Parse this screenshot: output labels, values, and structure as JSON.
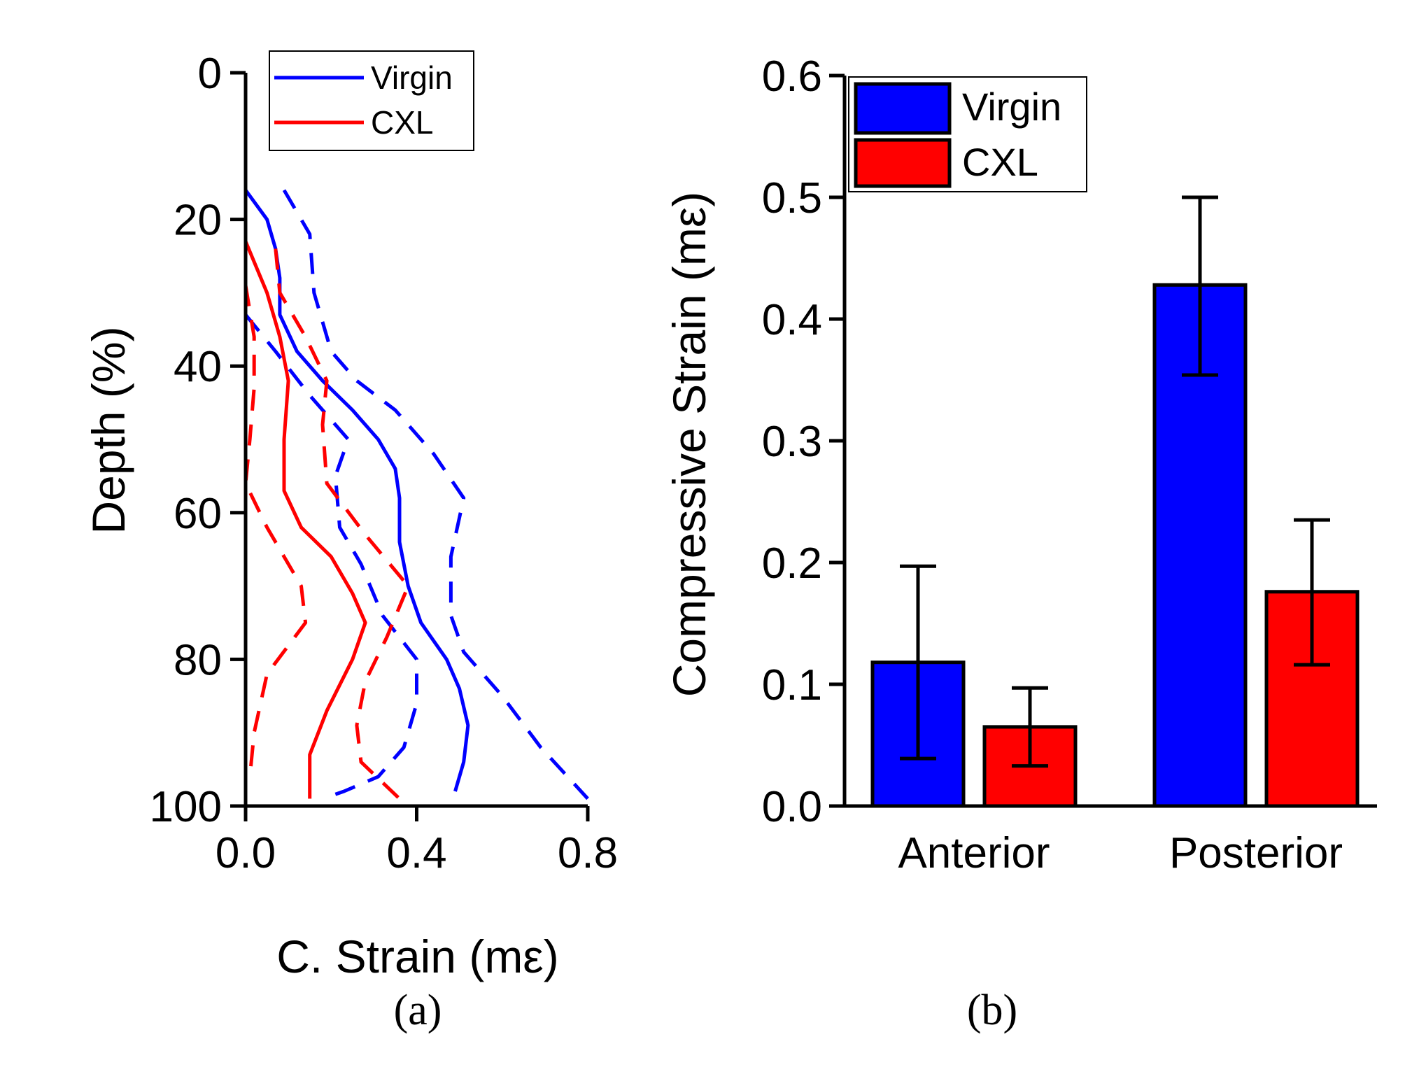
{
  "colors": {
    "virgin": "#0000ff",
    "cxl": "#ff0000",
    "axis": "#000000",
    "background": "#ffffff"
  },
  "chart_data": [
    {
      "id": "a",
      "type": "line",
      "caption": "(a)",
      "xlabel": "C. Strain (mε)",
      "ylabel": "Depth (%)",
      "xlim": [
        0.0,
        0.8
      ],
      "ylim": [
        100,
        0
      ],
      "x_ticks": [
        "0.0",
        "0.4",
        "0.8"
      ],
      "x_tick_values": [
        0.0,
        0.4,
        0.8
      ],
      "y_ticks": [
        "0",
        "20",
        "40",
        "60",
        "80",
        "100"
      ],
      "y_tick_values": [
        0,
        20,
        40,
        60,
        80,
        100
      ],
      "legend": [
        {
          "label": "Virgin",
          "color": "#0000ff"
        },
        {
          "label": "CXL",
          "color": "#ff0000"
        }
      ],
      "series": [
        {
          "name": "Virgin",
          "style": "solid",
          "color": "#0000ff",
          "points": [
            [
              0.0,
              16
            ],
            [
              0.05,
              20
            ],
            [
              0.07,
              24
            ],
            [
              0.08,
              28
            ],
            [
              0.08,
              33
            ],
            [
              0.12,
              38
            ],
            [
              0.18,
              42
            ],
            [
              0.25,
              46
            ],
            [
              0.31,
              50
            ],
            [
              0.35,
              54
            ],
            [
              0.36,
              58
            ],
            [
              0.36,
              64
            ],
            [
              0.38,
              70
            ],
            [
              0.41,
              75
            ],
            [
              0.47,
              80
            ],
            [
              0.5,
              84
            ],
            [
              0.52,
              89
            ],
            [
              0.51,
              94
            ],
            [
              0.49,
              98
            ]
          ]
        },
        {
          "name": "Virgin (+SD)",
          "style": "dashed",
          "color": "#0000ff",
          "points": [
            [
              0.09,
              16
            ],
            [
              0.15,
              22
            ],
            [
              0.16,
              30
            ],
            [
              0.2,
              38
            ],
            [
              0.26,
              42
            ],
            [
              0.35,
              46
            ],
            [
              0.44,
              52
            ],
            [
              0.51,
              58
            ],
            [
              0.48,
              66
            ],
            [
              0.48,
              74
            ],
            [
              0.51,
              79
            ],
            [
              0.6,
              85
            ],
            [
              0.69,
              92
            ],
            [
              0.8,
              99
            ]
          ]
        },
        {
          "name": "Virgin (−SD)",
          "style": "dashed",
          "color": "#0000ff",
          "points": [
            [
              0.0,
              33
            ],
            [
              0.07,
              38
            ],
            [
              0.15,
              44
            ],
            [
              0.24,
              50
            ],
            [
              0.21,
              55
            ],
            [
              0.22,
              62
            ],
            [
              0.27,
              67
            ],
            [
              0.32,
              74
            ],
            [
              0.4,
              80
            ],
            [
              0.4,
              86
            ],
            [
              0.37,
              92
            ],
            [
              0.31,
              96
            ],
            [
              0.23,
              98
            ],
            [
              0.18,
              99
            ]
          ]
        },
        {
          "name": "CXL",
          "style": "solid",
          "color": "#ff0000",
          "points": [
            [
              0.0,
              23
            ],
            [
              0.05,
              30
            ],
            [
              0.08,
              36
            ],
            [
              0.1,
              42
            ],
            [
              0.09,
              50
            ],
            [
              0.09,
              57
            ],
            [
              0.13,
              62
            ],
            [
              0.2,
              66
            ],
            [
              0.25,
              71
            ],
            [
              0.28,
              75
            ],
            [
              0.25,
              80
            ],
            [
              0.19,
              87
            ],
            [
              0.15,
              93
            ],
            [
              0.15,
              99
            ]
          ]
        },
        {
          "name": "CXL (+SD)",
          "style": "dashed",
          "color": "#ff0000",
          "points": [
            [
              0.07,
              24
            ],
            [
              0.08,
              30
            ],
            [
              0.14,
              36
            ],
            [
              0.19,
              42
            ],
            [
              0.18,
              48
            ],
            [
              0.19,
              56
            ],
            [
              0.28,
              63
            ],
            [
              0.38,
              70
            ],
            [
              0.33,
              77
            ],
            [
              0.28,
              83
            ],
            [
              0.26,
              89
            ],
            [
              0.27,
              94
            ],
            [
              0.36,
              99
            ]
          ]
        },
        {
          "name": "CXL (−SD)",
          "style": "dashed",
          "color": "#ff0000",
          "points": [
            [
              0.0,
              29
            ],
            [
              0.02,
              36
            ],
            [
              0.02,
              43
            ],
            [
              0.01,
              50
            ],
            [
              0.0,
              56
            ],
            [
              0.05,
              62
            ],
            [
              0.13,
              70
            ],
            [
              0.14,
              75
            ],
            [
              0.05,
              82
            ],
            [
              0.02,
              90
            ],
            [
              0.01,
              96
            ]
          ]
        }
      ]
    },
    {
      "id": "b",
      "type": "bar",
      "caption": "(b)",
      "xlabel": "",
      "ylabel": "Compressive Strain (mε)",
      "ylim": [
        0.0,
        0.6
      ],
      "y_ticks": [
        "0.0",
        "0.1",
        "0.2",
        "0.3",
        "0.4",
        "0.5",
        "0.6"
      ],
      "y_tick_values": [
        0.0,
        0.1,
        0.2,
        0.3,
        0.4,
        0.5,
        0.6
      ],
      "categories": [
        "Anterior",
        "Posterior"
      ],
      "legend": [
        {
          "label": "Virgin",
          "color": "#0000ff"
        },
        {
          "label": "CXL",
          "color": "#ff0000"
        }
      ],
      "series": [
        {
          "name": "Virgin",
          "color": "#0000ff",
          "values": [
            0.118,
            0.428
          ],
          "err_low": [
            0.039,
            0.354
          ],
          "err_high": [
            0.197,
            0.5
          ]
        },
        {
          "name": "CXL",
          "color": "#ff0000",
          "values": [
            0.065,
            0.176
          ],
          "err_low": [
            0.033,
            0.116
          ],
          "err_high": [
            0.097,
            0.235
          ]
        }
      ]
    }
  ]
}
